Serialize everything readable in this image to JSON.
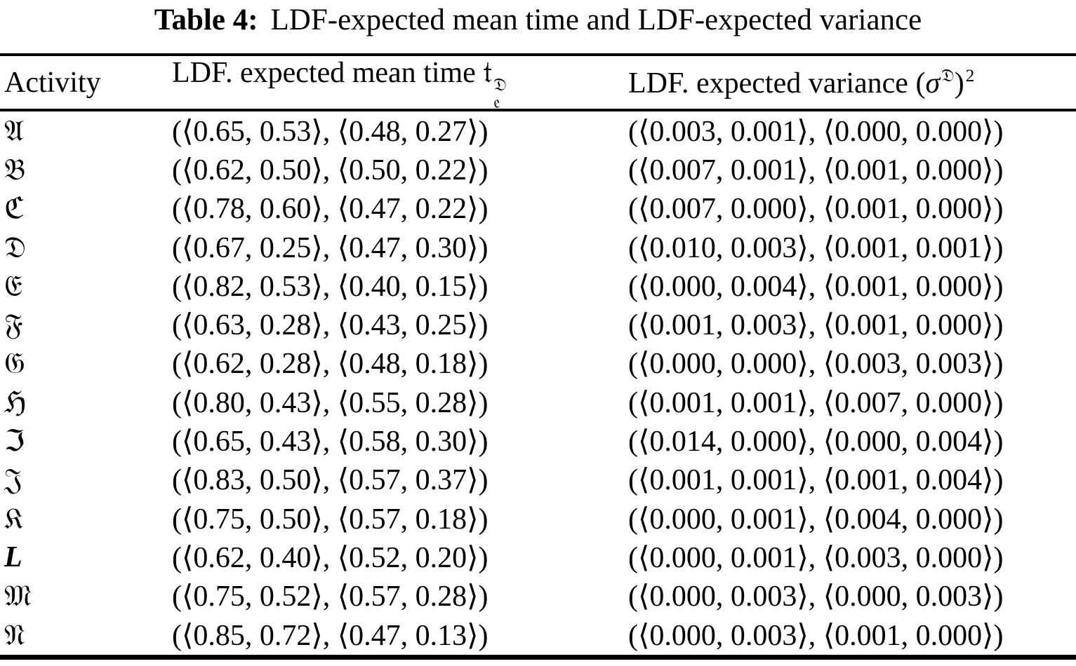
{
  "colors": {
    "background": "#ffffff",
    "text": "#000000",
    "rules": "#000000"
  },
  "caption": {
    "label": "Table 4:",
    "text": "LDF-expected mean time and LDF-expected variance"
  },
  "table": {
    "headers": {
      "activity": "Activity",
      "mean": {
        "text": "LDF. expected mean time ",
        "symbol": {
          "base": "𝔱",
          "base_fallback": "t",
          "sup": "𝔇",
          "sup_fallback": "D",
          "sub": "𝔢",
          "sub_fallback": "e"
        }
      },
      "variance": {
        "text": "LDF. expected variance ",
        "open_paren": "(",
        "sigma": "σ",
        "sup": "𝔇",
        "sup_fallback": "D",
        "close_paren": ")",
        "exponent": "2"
      }
    },
    "rows": [
      {
        "glyph": "𝔄",
        "letter": "A",
        "mean": "(⟨0.65, 0.53⟩, ⟨0.48, 0.27⟩)",
        "variance": "(⟨0.003, 0.001⟩, ⟨0.000, 0.000⟩)"
      },
      {
        "glyph": "𝔅",
        "letter": "B",
        "mean": "(⟨0.62, 0.50⟩, ⟨0.50, 0.22⟩)",
        "variance": "(⟨0.007, 0.001⟩, ⟨0.001, 0.000⟩)"
      },
      {
        "glyph": "ℭ",
        "letter": "C",
        "mean": "(⟨0.78, 0.60⟩, ⟨0.47, 0.22⟩)",
        "variance": "(⟨0.007, 0.000⟩, ⟨0.001, 0.000⟩)"
      },
      {
        "glyph": "𝔇",
        "letter": "D",
        "mean": "(⟨0.67, 0.25⟩, ⟨0.47, 0.30⟩)",
        "variance": "(⟨0.010, 0.003⟩, ⟨0.001, 0.001⟩)"
      },
      {
        "glyph": "𝔈",
        "letter": "E",
        "mean": "(⟨0.82, 0.53⟩, ⟨0.40, 0.15⟩)",
        "variance": "(⟨0.000, 0.004⟩, ⟨0.001, 0.000⟩)"
      },
      {
        "glyph": "𝔉",
        "letter": "F",
        "mean": "(⟨0.63, 0.28⟩, ⟨0.43, 0.25⟩)",
        "variance": "(⟨0.001, 0.003⟩, ⟨0.001, 0.000⟩)"
      },
      {
        "glyph": "𝔊",
        "letter": "G",
        "mean": "(⟨0.62, 0.28⟩, ⟨0.48, 0.18⟩)",
        "variance": "(⟨0.000, 0.000⟩, ⟨0.003, 0.003⟩)"
      },
      {
        "glyph": "ℌ",
        "letter": "H",
        "mean": "(⟨0.80, 0.43⟩, ⟨0.55, 0.28⟩)",
        "variance": "(⟨0.001, 0.001⟩, ⟨0.007, 0.000⟩)"
      },
      {
        "glyph": "ℑ",
        "letter": "I",
        "mean": "(⟨0.65, 0.43⟩, ⟨0.58, 0.30⟩)",
        "variance": "(⟨0.014, 0.000⟩, ⟨0.000, 0.004⟩)"
      },
      {
        "glyph": "𝔍",
        "letter": "J",
        "mean": "(⟨0.83, 0.50⟩, ⟨0.57, 0.37⟩)",
        "variance": "(⟨0.001, 0.001⟩, ⟨0.001, 0.004⟩)"
      },
      {
        "glyph": "𝔎",
        "letter": "K",
        "mean": "(⟨0.75, 0.50⟩, ⟨0.57, 0.18⟩)",
        "variance": "(⟨0.000, 0.001⟩, ⟨0.004, 0.000⟩)"
      },
      {
        "glyph": "𝔏",
        "letter": "L",
        "mean": "(⟨0.62, 0.40⟩, ⟨0.52, 0.20⟩)",
        "variance": "(⟨0.000, 0.001⟩, ⟨0.003, 0.000⟩)"
      },
      {
        "glyph": "𝔐",
        "letter": "M",
        "mean": "(⟨0.75, 0.52⟩, ⟨0.57, 0.28⟩)",
        "variance": "(⟨0.000, 0.003⟩, ⟨0.000, 0.003⟩)"
      },
      {
        "glyph": "𝔑",
        "letter": "N",
        "mean": "(⟨0.85, 0.72⟩, ⟨0.47, 0.13⟩)",
        "variance": "(⟨0.000, 0.003⟩, ⟨0.001, 0.000⟩)"
      }
    ]
  }
}
